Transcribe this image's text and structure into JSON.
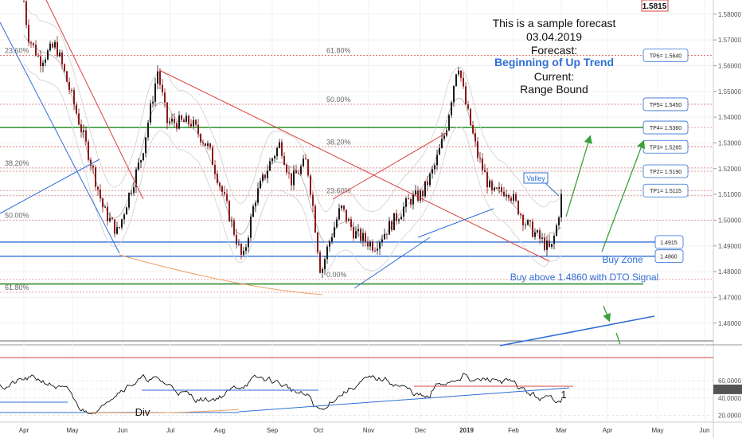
{
  "chart_data": {
    "type": "candlestick",
    "y_axis": {
      "ylim": [
        1.4525,
        1.5855
      ],
      "ticks": [
        "1.58000",
        "1.57000",
        "1.56000",
        "1.55000",
        "1.54000",
        "1.53000",
        "1.52000",
        "1.51000",
        "1.50000",
        "1.49000",
        "1.48000",
        "1.47000",
        "1.46000"
      ],
      "tick_values": [
        1.58,
        1.57,
        1.56,
        1.55,
        1.54,
        1.53,
        1.52,
        1.51,
        1.5,
        1.49,
        1.48,
        1.47,
        1.46
      ],
      "top_price_label": "1.5815"
    },
    "x_axis": {
      "labels": [
        "Apr",
        "May",
        "Jun",
        "Jul",
        "Aug",
        "Sep",
        "Oct",
        "Nov",
        "Dec",
        "2019",
        "Feb",
        "Mar",
        "Apr",
        "May",
        "Jun"
      ]
    },
    "forecast_text": {
      "line1": "This is a sample forecast",
      "line2": "03.04.2019",
      "line3": "Forecast:",
      "line4": "Beginning of Up Trend",
      "line5": "Current:",
      "line6": "Range Bound"
    },
    "fib_levels_left": [
      {
        "label": "23.60%",
        "value": 1.564
      },
      {
        "label": "38.20%",
        "value": 1.5203
      },
      {
        "label": "50.00%",
        "value": 1.5
      },
      {
        "label": "61.80%",
        "value": 1.472
      }
    ],
    "fib_levels_mid": [
      {
        "label": "61.80%",
        "value": 1.564
      },
      {
        "label": "50.00%",
        "value": 1.545
      },
      {
        "label": "38.20%",
        "value": 1.5285
      },
      {
        "label": "23.60%",
        "value": 1.5095
      },
      {
        "label": "0.00%",
        "value": 1.477
      }
    ],
    "targets": [
      {
        "label": "TP6= 1.5640",
        "value": 1.564
      },
      {
        "label": "TP5= 1.5450",
        "value": 1.545
      },
      {
        "label": "TP4= 1.5360",
        "value": 1.536
      },
      {
        "label": "TP3= 1.5285",
        "value": 1.5285
      },
      {
        "label": "TP2= 1.5190",
        "value": 1.519
      },
      {
        "label": "TP1= 1.5115",
        "value": 1.5115
      }
    ],
    "buy_zone": {
      "upper": 1.4915,
      "lower": 1.486,
      "upper_label": "1.4915",
      "lower_label": "1.4860"
    },
    "annotations": {
      "valley": "Valley",
      "buy_zone": "Buy Zone",
      "buy_above": "Buy above 1.4860 with DTO Signal",
      "div": "Div",
      "marker_1": "1"
    },
    "oscillator": {
      "ticks": [
        "60.0000",
        "50.0000",
        "40.0000",
        "20.0000"
      ],
      "tick_values": [
        60,
        50,
        40,
        20
      ],
      "ylim": [
        14,
        95
      ],
      "current_label": "50.0000"
    },
    "colors": {
      "up_candle": "#1a1a1a",
      "down_candle": "#8b1a1a",
      "support_green": "#3a9a3a",
      "zone_blue": "#2f6fd6",
      "resistance_red": "#d94040",
      "fib_dotted": "#e07070"
    }
  }
}
